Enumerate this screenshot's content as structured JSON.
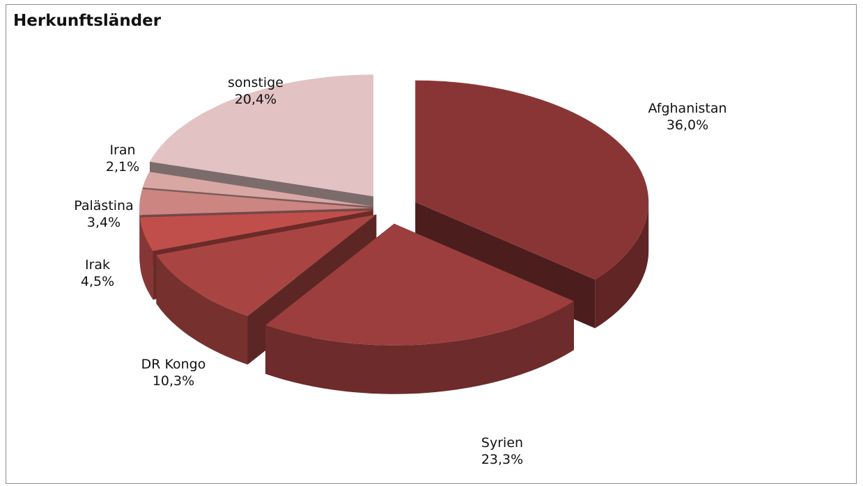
{
  "chart_data": {
    "type": "pie",
    "title": "Herkunftsländer",
    "slices": [
      {
        "label": "Afghanistan",
        "value": 36.0,
        "value_text": "36,0%",
        "color": "#8a3535"
      },
      {
        "label": "Syrien",
        "value": 23.3,
        "value_text": "23,3%",
        "color": "#9c3e3e"
      },
      {
        "label": "DR Kongo",
        "value": 10.3,
        "value_text": "10,3%",
        "color": "#a84542"
      },
      {
        "label": "Irak",
        "value": 4.5,
        "value_text": "4,5%",
        "color": "#c04f4b"
      },
      {
        "label": "Palästina",
        "value": 3.4,
        "value_text": "3,4%",
        "color": "#cd8581"
      },
      {
        "label": "Iran",
        "value": 2.1,
        "value_text": "2,1%",
        "color": "#d8a7a4"
      },
      {
        "label": "sonstige",
        "value": 20.4,
        "value_text": "20,4%",
        "color": "#e2c2c2"
      }
    ]
  }
}
